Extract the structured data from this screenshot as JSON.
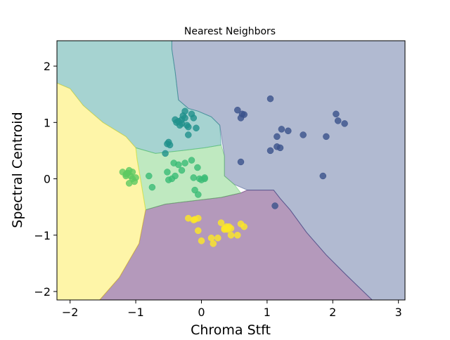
{
  "chart_data": {
    "type": "scatter",
    "title": "Nearest Neighbors",
    "xlabel": "Chroma Stft",
    "ylabel": "Spectral Centroid",
    "xlim": [
      -2.2,
      3.1
    ],
    "ylim": [
      -2.15,
      2.45
    ],
    "xticks": [
      -2,
      -1,
      0,
      1,
      2,
      3
    ],
    "yticks": [
      -2,
      -1,
      0,
      1,
      2
    ],
    "xtick_labels": [
      "−2",
      "−1",
      "0",
      "1",
      "2",
      "3"
    ],
    "ytick_labels": [
      "−2",
      "−1",
      "0",
      "1",
      "2"
    ],
    "grid": false,
    "legend": null,
    "decision_regions": [
      {
        "class": 0,
        "color": "#440154",
        "alpha": 0.4,
        "polygon": [
          [
            -0.85,
            -0.55
          ],
          [
            -0.55,
            -0.45
          ],
          [
            -0.2,
            -0.4
          ],
          [
            0.3,
            -0.33
          ],
          [
            0.6,
            -0.25
          ],
          [
            0.7,
            -0.2
          ],
          [
            1.1,
            -0.2
          ],
          [
            1.2,
            -0.35
          ],
          [
            1.35,
            -0.55
          ],
          [
            1.6,
            -0.95
          ],
          [
            1.9,
            -1.35
          ],
          [
            2.2,
            -1.7
          ],
          [
            2.6,
            -2.15
          ],
          [
            -1.55,
            -2.15
          ],
          [
            -1.4,
            -1.95
          ],
          [
            -1.25,
            -1.75
          ],
          [
            -1.1,
            -1.45
          ],
          [
            -0.95,
            -1.15
          ],
          [
            -0.9,
            -0.85
          ]
        ]
      },
      {
        "class": 1,
        "color": "#3b528b",
        "alpha": 0.4,
        "polygon": [
          [
            -0.45,
            2.45
          ],
          [
            3.1,
            2.45
          ],
          [
            3.1,
            -2.15
          ],
          [
            2.6,
            -2.15
          ],
          [
            2.2,
            -1.7
          ],
          [
            1.9,
            -1.35
          ],
          [
            1.6,
            -0.95
          ],
          [
            1.35,
            -0.55
          ],
          [
            1.2,
            -0.35
          ],
          [
            1.1,
            -0.2
          ],
          [
            0.7,
            -0.2
          ],
          [
            0.5,
            -0.1
          ],
          [
            0.35,
            0.05
          ],
          [
            0.35,
            0.4
          ],
          [
            0.28,
            0.95
          ],
          [
            0.15,
            1.1
          ],
          [
            -0.05,
            1.2
          ],
          [
            -0.2,
            1.25
          ],
          [
            -0.35,
            1.4
          ],
          [
            -0.4,
            1.9
          ],
          [
            -0.45,
            2.3
          ]
        ]
      },
      {
        "class": 2,
        "color": "#21918c",
        "alpha": 0.4,
        "polygon": [
          [
            -2.2,
            2.45
          ],
          [
            -0.45,
            2.45
          ],
          [
            -0.45,
            2.3
          ],
          [
            -0.4,
            1.9
          ],
          [
            -0.35,
            1.4
          ],
          [
            -0.2,
            1.25
          ],
          [
            -0.05,
            1.2
          ],
          [
            0.15,
            1.1
          ],
          [
            0.28,
            0.95
          ],
          [
            0.3,
            0.6
          ],
          [
            0.05,
            0.55
          ],
          [
            -0.3,
            0.5
          ],
          [
            -0.7,
            0.45
          ],
          [
            -1.0,
            0.55
          ],
          [
            -1.15,
            0.75
          ],
          [
            -1.5,
            1.0
          ],
          [
            -1.8,
            1.3
          ],
          [
            -2.0,
            1.6
          ],
          [
            -2.2,
            1.7
          ]
        ]
      },
      {
        "class": 3,
        "color": "#5ec962",
        "alpha": 0.4,
        "polygon": [
          [
            -1.0,
            0.55
          ],
          [
            -0.7,
            0.45
          ],
          [
            -0.3,
            0.5
          ],
          [
            0.05,
            0.55
          ],
          [
            0.3,
            0.6
          ],
          [
            0.35,
            0.4
          ],
          [
            0.35,
            0.05
          ],
          [
            0.5,
            -0.1
          ],
          [
            0.6,
            -0.25
          ],
          [
            0.3,
            -0.33
          ],
          [
            -0.2,
            -0.4
          ],
          [
            -0.55,
            -0.45
          ],
          [
            -0.85,
            -0.55
          ],
          [
            -0.9,
            -0.2
          ],
          [
            -0.95,
            0.15
          ],
          [
            -0.98,
            0.35
          ]
        ]
      },
      {
        "class": 4,
        "color": "#fde725",
        "alpha": 0.4,
        "polygon": [
          [
            -2.2,
            1.7
          ],
          [
            -2.0,
            1.6
          ],
          [
            -1.8,
            1.3
          ],
          [
            -1.5,
            1.0
          ],
          [
            -1.15,
            0.75
          ],
          [
            -1.0,
            0.55
          ],
          [
            -0.98,
            0.35
          ],
          [
            -0.95,
            0.15
          ],
          [
            -0.9,
            -0.2
          ],
          [
            -0.85,
            -0.55
          ],
          [
            -0.9,
            -0.85
          ],
          [
            -0.95,
            -1.15
          ],
          [
            -1.1,
            -1.45
          ],
          [
            -1.25,
            -1.75
          ],
          [
            -1.4,
            -1.95
          ],
          [
            -1.55,
            -2.15
          ],
          [
            -2.2,
            -2.15
          ]
        ]
      }
    ],
    "series": [
      {
        "class": 0,
        "color": "#fde725",
        "points": [
          [
            -0.2,
            -0.7
          ],
          [
            -0.1,
            -0.72
          ],
          [
            -0.05,
            -0.7
          ],
          [
            -0.05,
            -0.92
          ],
          [
            0.0,
            -1.1
          ],
          [
            0.15,
            -1.05
          ],
          [
            0.18,
            -1.15
          ],
          [
            0.25,
            -1.05
          ],
          [
            0.3,
            -0.78
          ],
          [
            0.35,
            -0.9
          ],
          [
            0.38,
            -0.85
          ],
          [
            0.4,
            -0.88
          ],
          [
            0.42,
            -0.85
          ],
          [
            0.45,
            -0.88
          ],
          [
            0.4,
            -0.9
          ],
          [
            0.35,
            -0.88
          ],
          [
            0.45,
            -1.0
          ],
          [
            0.55,
            -1.0
          ],
          [
            0.6,
            -0.8
          ],
          [
            0.65,
            -0.85
          ],
          [
            -0.12,
            -0.73
          ]
        ]
      },
      {
        "class": 1,
        "color": "#5ec962",
        "points": [
          [
            -1.2,
            0.12
          ],
          [
            -1.15,
            0.08
          ],
          [
            -1.12,
            0.1
          ],
          [
            -1.1,
            0.15
          ],
          [
            -1.08,
            0.05
          ],
          [
            -1.05,
            0.0
          ],
          [
            -1.05,
            0.12
          ],
          [
            -1.1,
            -0.08
          ],
          [
            -1.15,
            0.05
          ],
          [
            -1.02,
            -0.05
          ],
          [
            -1.0,
            0.02
          ],
          [
            -1.13,
            0.1
          ]
        ]
      },
      {
        "class": 2,
        "color": "#21918c",
        "points": [
          [
            -0.55,
            0.45
          ],
          [
            -0.52,
            0.62
          ],
          [
            -0.5,
            0.65
          ],
          [
            -0.48,
            0.6
          ],
          [
            -0.4,
            1.05
          ],
          [
            -0.38,
            1.0
          ],
          [
            -0.35,
            1.02
          ],
          [
            -0.3,
            0.98
          ],
          [
            -0.28,
            1.12
          ],
          [
            -0.25,
            1.08
          ],
          [
            -0.22,
            0.95
          ],
          [
            -0.2,
            0.78
          ],
          [
            -0.2,
            0.92
          ],
          [
            -0.15,
            1.15
          ],
          [
            -0.12,
            1.08
          ],
          [
            -0.08,
            0.9
          ],
          [
            -0.3,
            1.05
          ],
          [
            -0.25,
            1.2
          ],
          [
            -0.33,
            0.95
          ]
        ]
      },
      {
        "class": 3,
        "color": "#3b528b",
        "points": [
          [
            0.55,
            1.22
          ],
          [
            0.6,
            1.08
          ],
          [
            0.62,
            1.15
          ],
          [
            0.6,
            0.3
          ],
          [
            1.05,
            1.42
          ],
          [
            1.05,
            0.5
          ],
          [
            1.15,
            0.75
          ],
          [
            1.15,
            0.57
          ],
          [
            1.2,
            0.55
          ],
          [
            1.22,
            0.88
          ],
          [
            1.32,
            0.85
          ],
          [
            1.55,
            0.78
          ],
          [
            1.9,
            0.75
          ],
          [
            1.85,
            0.05
          ],
          [
            2.05,
            1.15
          ],
          [
            2.08,
            1.03
          ],
          [
            2.18,
            0.98
          ],
          [
            1.12,
            -0.48
          ],
          [
            0.65,
            1.14
          ]
        ]
      },
      {
        "class": 4,
        "color": "#3bbb75",
        "points": [
          [
            -0.8,
            0.05
          ],
          [
            -0.75,
            -0.15
          ],
          [
            -0.52,
            0.12
          ],
          [
            -0.5,
            -0.02
          ],
          [
            -0.45,
            0.0
          ],
          [
            -0.42,
            0.28
          ],
          [
            -0.4,
            0.05
          ],
          [
            -0.35,
            0.25
          ],
          [
            -0.3,
            0.15
          ],
          [
            -0.25,
            0.28
          ],
          [
            -0.15,
            0.33
          ],
          [
            -0.12,
            0.02
          ],
          [
            -0.1,
            -0.2
          ],
          [
            -0.06,
            0.2
          ],
          [
            -0.05,
            -0.28
          ],
          [
            -0.03,
            0.0
          ],
          [
            0.0,
            -0.02
          ],
          [
            0.05,
            0.0
          ],
          [
            0.05,
            0.02
          ]
        ]
      }
    ]
  }
}
